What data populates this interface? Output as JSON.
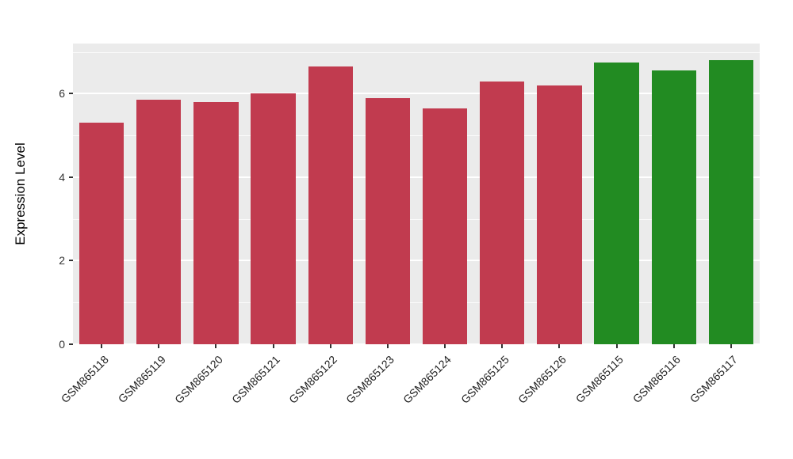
{
  "chart_data": {
    "type": "bar",
    "title": "",
    "xlabel": "",
    "ylabel": "Expression Level",
    "categories": [
      "GSM865118",
      "GSM865119",
      "GSM865120",
      "GSM865121",
      "GSM865122",
      "GSM865123",
      "GSM865124",
      "GSM865125",
      "GSM865126",
      "GSM865115",
      "GSM865116",
      "GSM865117"
    ],
    "values": [
      5.3,
      5.85,
      5.8,
      6.0,
      6.65,
      5.9,
      5.65,
      6.3,
      6.2,
      6.75,
      6.55,
      6.8
    ],
    "bar_colors": [
      "#C13B4F",
      "#C13B4F",
      "#C13B4F",
      "#C13B4F",
      "#C13B4F",
      "#C13B4F",
      "#C13B4F",
      "#C13B4F",
      "#C13B4F",
      "#228B22",
      "#228B22",
      "#228B22"
    ],
    "groups": [
      {
        "name": "red-group",
        "color": "#C13B4F",
        "samples": [
          "GSM865118",
          "GSM865119",
          "GSM865120",
          "GSM865121",
          "GSM865122",
          "GSM865123",
          "GSM865124",
          "GSM865125",
          "GSM865126"
        ]
      },
      {
        "name": "green-group",
        "color": "#228B22",
        "samples": [
          "GSM865115",
          "GSM865116",
          "GSM865117"
        ]
      }
    ],
    "ylim": [
      0,
      7.2
    ],
    "yticks": [
      0,
      2,
      4,
      6
    ],
    "yticks_minor": [
      1,
      3,
      5,
      7
    ],
    "grid": true,
    "legend": "none",
    "colors": {
      "panel_background": "#EBEBEB",
      "gridline": "#FFFFFF",
      "axis_text": "#333333"
    }
  }
}
